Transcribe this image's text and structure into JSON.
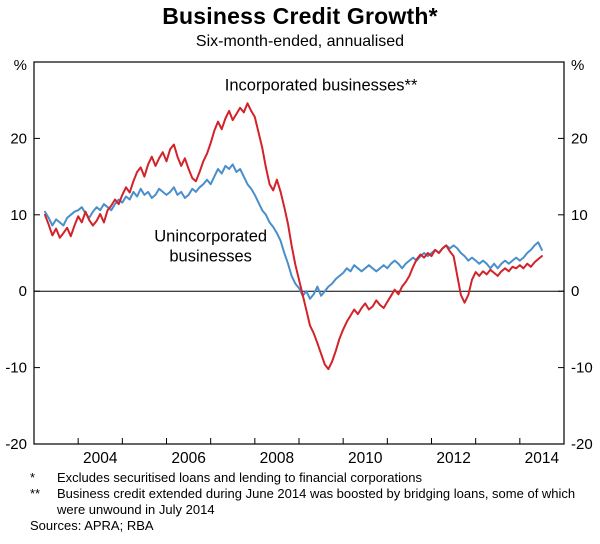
{
  "header": {
    "title": "Business Credit Growth*",
    "subtitle": "Six-month-ended, annualised"
  },
  "chart_data": {
    "type": "line",
    "title": "Business Credit Growth*",
    "subtitle": "Six-month-ended, annualised",
    "unit_left": "%",
    "unit_right": "%",
    "x_range": [
      2003,
      2015
    ],
    "y_range": [
      -20,
      30
    ],
    "y_ticks": [
      -20,
      -10,
      0,
      10,
      20
    ],
    "x_label_years": [
      2004,
      2006,
      2008,
      2010,
      2012,
      2014
    ],
    "grid": "none",
    "zero_line": true,
    "legend_position": "inline-annotations",
    "series": [
      {
        "name": "Unincorporated businesses",
        "color": "#4a8fcb",
        "x_start": 2003.25,
        "x_step": 0.083333,
        "label": {
          "lines": [
            "Unincorporated",
            "businesses"
          ],
          "x": 2007.0,
          "y": 6.5
        },
        "values": [
          10.4,
          9.6,
          8.6,
          9.4,
          9.0,
          8.6,
          9.6,
          10.0,
          10.4,
          10.6,
          11.0,
          10.2,
          9.6,
          10.4,
          11.0,
          10.6,
          11.4,
          11.0,
          10.6,
          11.4,
          12.0,
          11.6,
          12.4,
          12.0,
          13.0,
          12.4,
          13.4,
          12.6,
          13.0,
          12.2,
          12.6,
          13.4,
          13.0,
          12.6,
          13.0,
          13.6,
          12.6,
          13.0,
          12.2,
          12.6,
          13.4,
          13.0,
          13.6,
          14.0,
          14.6,
          14.0,
          15.0,
          16.0,
          15.4,
          16.4,
          16.0,
          16.6,
          15.6,
          16.0,
          15.0,
          14.0,
          13.4,
          12.6,
          11.6,
          10.6,
          10.0,
          9.0,
          8.4,
          7.6,
          6.6,
          5.0,
          3.6,
          2.0,
          1.0,
          0.4,
          -0.6,
          0.0,
          -1.0,
          -0.4,
          0.6,
          -0.6,
          0.0,
          0.6,
          1.0,
          1.6,
          2.0,
          2.4,
          3.0,
          2.6,
          3.4,
          3.0,
          2.6,
          3.0,
          3.4,
          3.0,
          2.6,
          3.0,
          3.4,
          3.0,
          3.6,
          4.0,
          3.6,
          3.0,
          3.6,
          4.0,
          4.4,
          4.0,
          4.6,
          5.0,
          4.6,
          5.0,
          5.4,
          5.0,
          5.6,
          6.0,
          5.6,
          6.0,
          5.6,
          5.0,
          4.6,
          4.0,
          4.4,
          4.0,
          3.6,
          4.0,
          3.6,
          3.0,
          3.6,
          3.0,
          3.6,
          4.0,
          3.6,
          4.0,
          4.4,
          4.0,
          4.4,
          5.0,
          5.4,
          6.0,
          6.4,
          5.4
        ]
      },
      {
        "name": "Incorporated businesses**",
        "color": "#d2232a",
        "x_start": 2003.25,
        "x_step": 0.083333,
        "label": {
          "lines": [
            "Incorporated businesses**"
          ],
          "x": 2009.5,
          "y": 26.3
        },
        "values": [
          10.0,
          8.7,
          7.3,
          8.2,
          7.0,
          7.6,
          8.3,
          7.2,
          8.6,
          9.8,
          9.0,
          10.4,
          9.3,
          8.6,
          9.2,
          10.1,
          9.0,
          10.6,
          11.2,
          12.0,
          11.4,
          12.6,
          13.6,
          12.9,
          14.4,
          15.6,
          16.2,
          15.0,
          16.6,
          17.6,
          16.4,
          17.4,
          18.2,
          17.0,
          18.6,
          19.2,
          17.6,
          16.4,
          17.4,
          16.0,
          14.8,
          14.4,
          15.6,
          17.0,
          18.0,
          19.4,
          21.0,
          22.2,
          21.2,
          22.6,
          23.6,
          22.4,
          23.2,
          24.0,
          23.4,
          24.6,
          23.6,
          22.8,
          20.8,
          18.8,
          16.2,
          14.0,
          13.2,
          14.6,
          13.0,
          11.0,
          8.8,
          6.0,
          3.5,
          1.5,
          -0.5,
          -2.5,
          -4.5,
          -5.5,
          -6.8,
          -8.2,
          -9.6,
          -10.2,
          -9.2,
          -7.8,
          -6.2,
          -5.0,
          -4.0,
          -3.2,
          -2.4,
          -3.0,
          -2.2,
          -1.6,
          -2.4,
          -2.0,
          -1.2,
          -1.8,
          -2.2,
          -1.4,
          -0.6,
          0.2,
          -0.4,
          0.6,
          1.2,
          2.0,
          3.2,
          4.2,
          4.8,
          4.4,
          5.0,
          4.6,
          5.4,
          5.0,
          5.6,
          6.0,
          5.2,
          4.6,
          2.0,
          -0.5,
          -1.5,
          -0.5,
          1.5,
          2.5,
          2.0,
          2.6,
          2.2,
          2.8,
          2.4,
          2.0,
          2.6,
          3.0,
          2.6,
          3.2,
          3.0,
          3.4,
          3.0,
          3.6,
          3.2,
          3.8,
          4.2,
          4.6
        ]
      }
    ]
  },
  "footnotes": [
    {
      "marker": "*",
      "text": "Excludes securitised loans and lending to financial corporations"
    },
    {
      "marker": "**",
      "text": "Business credit extended during June 2014 was boosted by bridging loans, some of which were unwound in July 2014"
    }
  ],
  "sources": "Sources: APRA; RBA"
}
